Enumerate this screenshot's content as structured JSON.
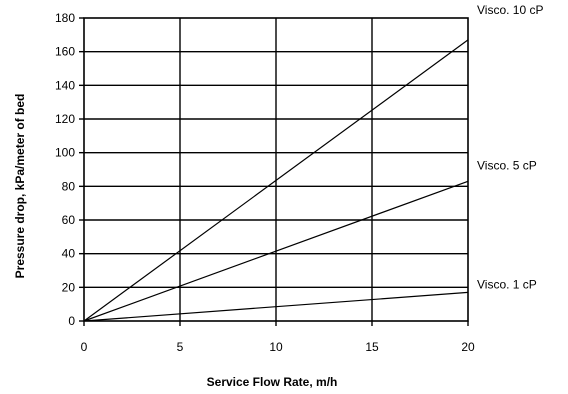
{
  "chart_data": {
    "type": "line",
    "title": "",
    "xlabel": "Service Flow Rate, m/h",
    "ylabel": "Pressure drop, kPa/meter of bed",
    "xlim": [
      0,
      20
    ],
    "ylim": [
      0,
      180
    ],
    "xticks": [
      0,
      5,
      10,
      15,
      20
    ],
    "yticks": [
      0,
      20,
      40,
      60,
      80,
      100,
      120,
      140,
      160,
      180
    ],
    "grid": true,
    "legend": "right (labels at line ends)",
    "series": [
      {
        "name": "Visco. 10 cP",
        "x": [
          0,
          20
        ],
        "y": [
          0,
          167
        ]
      },
      {
        "name": "Visco. 5 cP",
        "x": [
          0,
          20
        ],
        "y": [
          0,
          83
        ]
      },
      {
        "name": "Visco. 1 cP",
        "x": [
          0,
          20
        ],
        "y": [
          0,
          17
        ]
      }
    ],
    "colors": {
      "line": "#000000",
      "grid": "#000000",
      "background": "#ffffff"
    }
  }
}
